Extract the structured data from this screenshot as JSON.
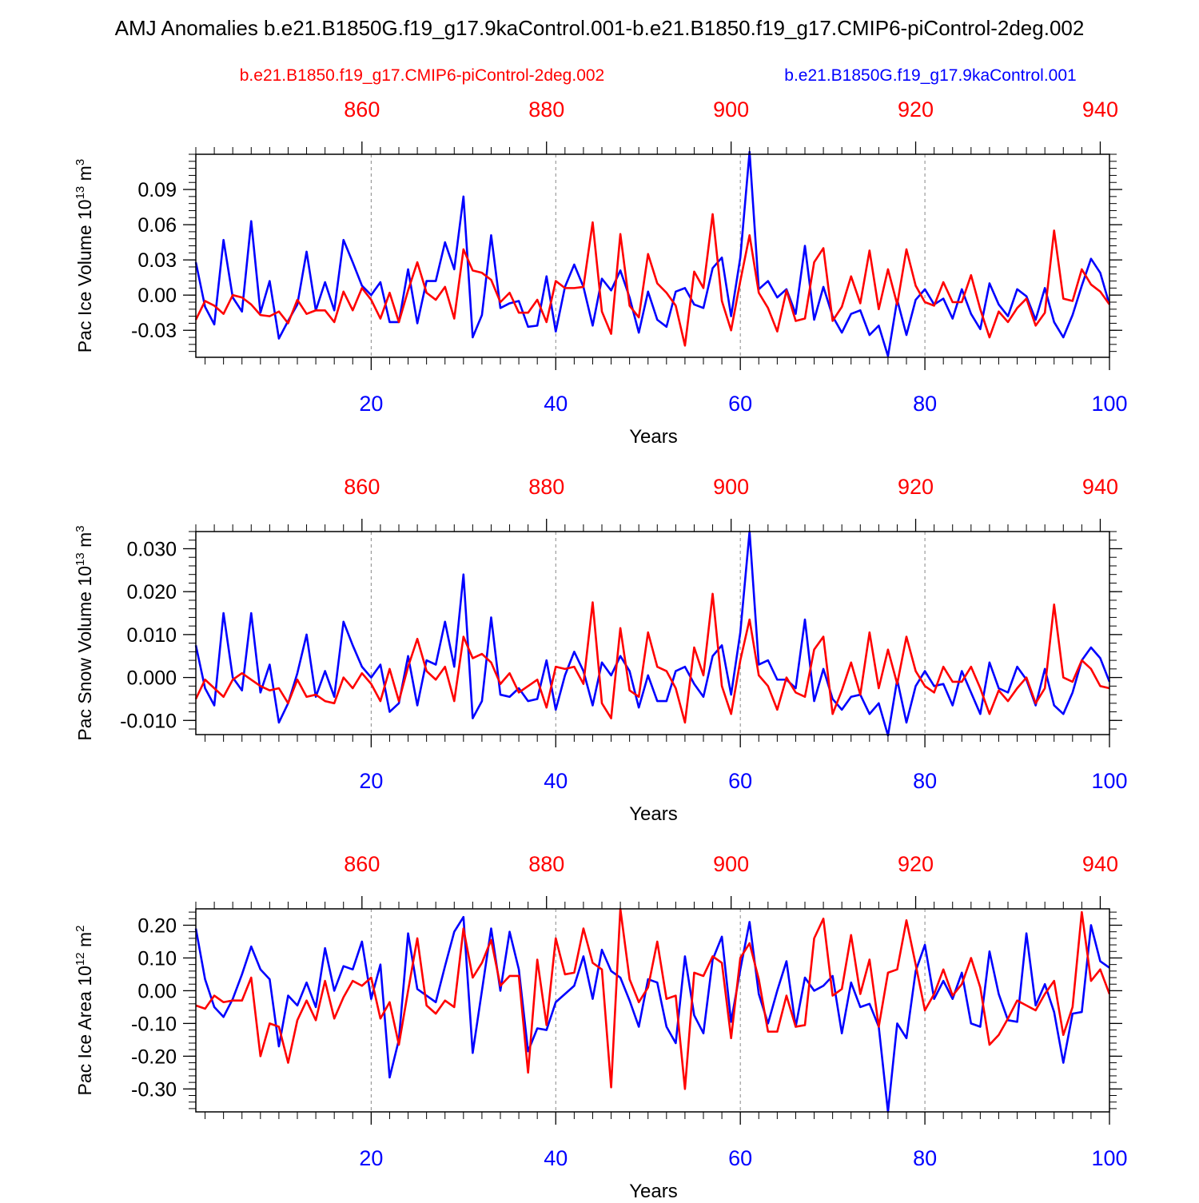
{
  "title": "AMJ Anomalies b.e21.B1850G.f19_g17.9kaControl.001-b.e21.B1850.f19_g17.CMIP6-piControl-2deg.002",
  "legend": {
    "red_label": "b.e21.B1850.f19_g17.CMIP6-piControl-2deg.002",
    "blue_label": "b.e21.B1850G.f19_g17.9kaControl.001"
  },
  "colors": {
    "red": "#ff0000",
    "blue": "#0000ff",
    "axis": "#000000",
    "grid": "#888888"
  },
  "chart_data": [
    {
      "type": "line",
      "id": "ice-volume",
      "ylabel": "Pac Ice Volume 10^13 m^3",
      "ylabel_main": "Pac Ice Volume 10",
      "ylabel_exp": "13",
      "ylabel_unit": " m",
      "ylabel_unit_exp": "3",
      "xlabel": "Years",
      "xlim": [
        1,
        100
      ],
      "ylim": [
        -0.053,
        0.12
      ],
      "yticks": [
        -0.03,
        0.0,
        0.03,
        0.06,
        0.09
      ],
      "ytick_labels": [
        "-0.03",
        "0.00",
        "0.03",
        "0.06",
        "0.09"
      ],
      "yminor_step": 0.006,
      "bottom_ticks": [
        20,
        40,
        60,
        80,
        100
      ],
      "bottom_tick_labels": [
        "20",
        "40",
        "60",
        "80",
        "100"
      ],
      "top_ticks": [
        860,
        880,
        900,
        920,
        940
      ],
      "top_tick_labels": [
        "860",
        "880",
        "900",
        "920",
        "940"
      ],
      "top_offset": 841,
      "grid_x": [
        20,
        40,
        60,
        80
      ],
      "series": [
        {
          "name": "b.e21.B1850G.f19_g17.9kaControl.001",
          "color": "blue",
          "values": [
            0.028,
            -0.01,
            -0.025,
            0.047,
            -0.002,
            -0.014,
            0.063,
            -0.015,
            0.012,
            -0.037,
            -0.022,
            -0.008,
            0.037,
            -0.013,
            0.011,
            -0.013,
            0.047,
            0.028,
            0.008,
            0.0,
            0.011,
            -0.023,
            -0.023,
            0.022,
            -0.024,
            0.012,
            0.012,
            0.045,
            0.022,
            0.084,
            -0.036,
            -0.017,
            0.051,
            -0.011,
            -0.007,
            -0.005,
            -0.027,
            -0.026,
            0.016,
            -0.031,
            0.007,
            0.026,
            0.007,
            -0.026,
            0.014,
            0.004,
            0.021,
            -0.002,
            -0.032,
            0.003,
            -0.021,
            -0.027,
            0.003,
            0.006,
            -0.008,
            -0.011,
            0.023,
            0.032,
            -0.018,
            0.032,
            0.122,
            0.005,
            0.012,
            -0.002,
            0.005,
            -0.016,
            0.042,
            -0.021,
            0.007,
            -0.018,
            -0.032,
            -0.016,
            -0.013,
            -0.034,
            -0.026,
            -0.052,
            -0.004,
            -0.034,
            -0.004,
            0.005,
            -0.008,
            -0.003,
            -0.02,
            0.005,
            -0.016,
            -0.029,
            0.01,
            -0.008,
            -0.018,
            0.005,
            -0.001,
            -0.021,
            0.006,
            -0.023,
            -0.036,
            -0.017,
            0.008,
            0.031,
            0.019,
            -0.008
          ]
        },
        {
          "name": "b.e21.B1850.f19_g17.CMIP6-piControl-2deg.002",
          "color": "red",
          "values": [
            -0.021,
            -0.005,
            -0.009,
            -0.016,
            0.0,
            -0.002,
            -0.008,
            -0.017,
            -0.018,
            -0.014,
            -0.024,
            -0.004,
            -0.016,
            -0.013,
            -0.013,
            -0.023,
            0.003,
            -0.013,
            0.006,
            -0.004,
            -0.02,
            0.002,
            -0.023,
            0.004,
            0.028,
            0.002,
            -0.004,
            0.007,
            -0.02,
            0.039,
            0.021,
            0.019,
            0.013,
            -0.006,
            0.002,
            -0.015,
            -0.015,
            -0.004,
            -0.023,
            0.012,
            0.006,
            0.006,
            0.007,
            0.062,
            -0.014,
            -0.033,
            0.052,
            -0.009,
            -0.019,
            0.035,
            0.01,
            0.002,
            -0.009,
            -0.043,
            0.02,
            0.006,
            0.069,
            -0.005,
            -0.03,
            0.012,
            0.051,
            0.002,
            -0.011,
            -0.031,
            0.004,
            -0.022,
            -0.02,
            0.028,
            0.04,
            -0.022,
            -0.01,
            0.016,
            -0.007,
            0.038,
            -0.012,
            0.022,
            -0.008,
            0.039,
            0.008,
            -0.006,
            -0.009,
            0.011,
            -0.006,
            -0.006,
            0.017,
            -0.012,
            -0.036,
            -0.014,
            -0.023,
            -0.011,
            -0.003,
            -0.026,
            -0.015,
            0.055,
            -0.003,
            -0.005,
            0.022,
            0.009,
            0.003,
            -0.008
          ]
        }
      ]
    },
    {
      "type": "line",
      "id": "snow-volume",
      "ylabel": "Pac Snow Volume 10^13 m^3",
      "ylabel_main": "Pac Snow Volume 10",
      "ylabel_exp": "13",
      "ylabel_unit": " m",
      "ylabel_unit_exp": "3",
      "xlabel": "Years",
      "xlim": [
        1,
        100
      ],
      "ylim": [
        -0.0133,
        0.034
      ],
      "yticks": [
        -0.01,
        0.0,
        0.01,
        0.02,
        0.03
      ],
      "ytick_labels": [
        "-0.010",
        "0.000",
        "0.010",
        "0.020",
        "0.030"
      ],
      "yminor_step": 0.002,
      "bottom_ticks": [
        20,
        40,
        60,
        80,
        100
      ],
      "bottom_tick_labels": [
        "20",
        "40",
        "60",
        "80",
        "100"
      ],
      "top_ticks": [
        860,
        880,
        900,
        920,
        940
      ],
      "top_tick_labels": [
        "860",
        "880",
        "900",
        "920",
        "940"
      ],
      "top_offset": 841,
      "grid_x": [
        20,
        40,
        60,
        80
      ],
      "series": [
        {
          "name": "b.e21.B1850G.f19_g17.9kaControl.001",
          "color": "blue",
          "values": [
            0.0075,
            -0.0025,
            -0.0065,
            0.015,
            0.0,
            -0.003,
            0.015,
            -0.0035,
            0.003,
            -0.0105,
            -0.006,
            0.001,
            0.01,
            -0.0045,
            0.0015,
            -0.0045,
            0.013,
            0.0075,
            0.0025,
            0.0,
            0.003,
            -0.008,
            -0.006,
            0.005,
            -0.0065,
            0.004,
            0.003,
            0.013,
            0.0025,
            0.024,
            -0.0095,
            -0.0055,
            0.014,
            -0.004,
            -0.0045,
            -0.0025,
            -0.0055,
            -0.005,
            0.004,
            -0.0075,
            0.0005,
            0.006,
            0.0015,
            -0.0065,
            0.0035,
            0.0005,
            0.005,
            0.0015,
            -0.007,
            0.0005,
            -0.0055,
            -0.0055,
            0.0015,
            0.0025,
            -0.0015,
            -0.0045,
            0.005,
            0.0075,
            -0.004,
            0.0105,
            0.034,
            0.003,
            0.004,
            -0.0005,
            -0.0005,
            -0.0025,
            0.0135,
            -0.0055,
            0.002,
            -0.005,
            -0.0075,
            -0.0045,
            -0.004,
            -0.0085,
            -0.006,
            -0.0135,
            -0.0005,
            -0.0105,
            -0.002,
            0.0015,
            -0.002,
            -0.0015,
            -0.0065,
            0.0015,
            -0.0035,
            -0.0085,
            0.0035,
            -0.0025,
            -0.0035,
            0.0025,
            -0.0005,
            -0.0065,
            0.002,
            -0.0065,
            -0.0085,
            -0.0035,
            0.004,
            0.007,
            0.0045,
            -0.001
          ]
        },
        {
          "name": "b.e21.B1850.f19_g17.CMIP6-piControl-2deg.002",
          "color": "red",
          "values": [
            -0.005,
            -0.0005,
            -0.0025,
            -0.0045,
            -0.0005,
            0.001,
            -0.0005,
            -0.002,
            -0.003,
            -0.0025,
            -0.006,
            -0.0005,
            -0.0045,
            -0.004,
            -0.0055,
            -0.006,
            0.0,
            -0.0025,
            0.001,
            -0.0015,
            -0.0055,
            0.002,
            -0.0055,
            0.0025,
            0.009,
            0.0015,
            -0.0005,
            0.0025,
            -0.0055,
            0.0095,
            0.0045,
            0.0055,
            0.0035,
            -0.0015,
            0.001,
            -0.0035,
            -0.002,
            -0.0005,
            -0.007,
            0.0025,
            0.002,
            0.0025,
            -0.0015,
            0.0175,
            -0.006,
            -0.0095,
            0.0115,
            -0.003,
            -0.0045,
            0.0105,
            0.0025,
            0.0015,
            -0.0025,
            -0.0105,
            0.007,
            0.0005,
            0.0195,
            -0.002,
            -0.0085,
            0.004,
            0.0135,
            0.0005,
            -0.002,
            -0.0075,
            0.0,
            -0.0035,
            -0.0045,
            0.0065,
            0.0095,
            -0.0085,
            -0.003,
            0.0035,
            -0.004,
            0.0105,
            -0.0025,
            0.0065,
            -0.0015,
            0.0095,
            0.0015,
            -0.002,
            -0.0035,
            0.0025,
            -0.001,
            -0.001,
            0.0025,
            -0.0025,
            -0.0085,
            -0.003,
            -0.0055,
            -0.0025,
            0.0,
            -0.006,
            -0.0025,
            0.017,
            0.0,
            -0.001,
            0.004,
            0.002,
            -0.002,
            -0.0025
          ]
        }
      ]
    },
    {
      "type": "line",
      "id": "ice-area",
      "ylabel": "Pac Ice Area 10^12 m^2",
      "ylabel_main": "Pac Ice Area 10",
      "ylabel_exp": "12",
      "ylabel_unit": " m",
      "ylabel_unit_exp": "2",
      "xlabel": "Years",
      "xlim": [
        1,
        100
      ],
      "ylim": [
        -0.37,
        0.25
      ],
      "yticks": [
        -0.3,
        -0.2,
        -0.1,
        0.0,
        0.1,
        0.2
      ],
      "ytick_labels": [
        "-0.30",
        "-0.20",
        "-0.10",
        "0.00",
        "0.10",
        "0.20"
      ],
      "yminor_step": 0.02,
      "bottom_ticks": [
        20,
        40,
        60,
        80,
        100
      ],
      "bottom_tick_labels": [
        "20",
        "40",
        "60",
        "80",
        "100"
      ],
      "top_ticks": [
        860,
        880,
        900,
        920,
        940
      ],
      "top_tick_labels": [
        "860",
        "880",
        "900",
        "920",
        "940"
      ],
      "top_offset": 841,
      "grid_x": [
        20,
        40,
        60,
        80
      ],
      "series": [
        {
          "name": "b.e21.B1850G.f19_g17.9kaControl.001",
          "color": "blue",
          "values": [
            0.19,
            0.035,
            -0.05,
            -0.08,
            -0.025,
            0.05,
            0.135,
            0.065,
            0.035,
            -0.17,
            -0.015,
            -0.045,
            0.025,
            -0.05,
            0.13,
            0.0,
            0.075,
            0.065,
            0.15,
            -0.025,
            0.08,
            -0.265,
            -0.15,
            0.175,
            0.005,
            -0.015,
            -0.035,
            0.075,
            0.18,
            0.225,
            -0.19,
            0.0,
            0.19,
            0.0,
            0.18,
            0.065,
            -0.185,
            -0.115,
            -0.12,
            -0.035,
            -0.01,
            0.015,
            0.105,
            -0.025,
            0.125,
            0.06,
            0.04,
            -0.03,
            -0.11,
            0.035,
            0.025,
            -0.11,
            -0.16,
            0.105,
            -0.075,
            -0.13,
            0.095,
            0.165,
            -0.095,
            0.065,
            0.21,
            -0.01,
            -0.1,
            0.0,
            0.09,
            -0.11,
            0.04,
            0.0,
            0.015,
            0.045,
            -0.13,
            0.025,
            -0.05,
            -0.04,
            -0.11,
            -0.37,
            -0.1,
            -0.145,
            0.06,
            0.14,
            -0.025,
            0.03,
            -0.025,
            0.055,
            -0.1,
            -0.11,
            0.12,
            -0.01,
            -0.09,
            -0.095,
            0.175,
            -0.045,
            0.02,
            -0.065,
            -0.22,
            -0.07,
            -0.065,
            0.2,
            0.09,
            0.07
          ]
        },
        {
          "name": "b.e21.B1850.f19_g17.CMIP6-piControl-2deg.002",
          "color": "red",
          "values": [
            -0.045,
            -0.055,
            -0.015,
            -0.035,
            -0.03,
            -0.03,
            0.04,
            -0.2,
            -0.1,
            -0.11,
            -0.22,
            -0.09,
            -0.03,
            -0.09,
            0.03,
            -0.085,
            -0.02,
            0.03,
            0.015,
            0.04,
            -0.085,
            -0.035,
            -0.165,
            0.0,
            0.16,
            -0.045,
            -0.07,
            -0.03,
            -0.05,
            0.19,
            0.04,
            0.085,
            0.155,
            0.015,
            0.045,
            0.045,
            -0.25,
            0.095,
            -0.105,
            0.16,
            0.05,
            0.055,
            0.19,
            0.085,
            0.065,
            -0.295,
            0.25,
            0.035,
            -0.035,
            0.01,
            0.15,
            -0.025,
            -0.015,
            -0.3,
            0.055,
            0.045,
            0.105,
            0.085,
            -0.145,
            0.1,
            0.145,
            0.035,
            -0.125,
            -0.125,
            -0.015,
            -0.11,
            -0.105,
            0.16,
            0.22,
            -0.015,
            0.005,
            0.17,
            -0.01,
            0.095,
            -0.11,
            0.055,
            0.065,
            0.215,
            0.08,
            -0.06,
            -0.01,
            0.065,
            -0.015,
            0.02,
            0.1,
            0.01,
            -0.165,
            -0.135,
            -0.085,
            -0.03,
            -0.045,
            -0.06,
            -0.01,
            0.03,
            -0.135,
            -0.05,
            0.24,
            0.03,
            0.065,
            -0.01
          ]
        }
      ]
    }
  ]
}
